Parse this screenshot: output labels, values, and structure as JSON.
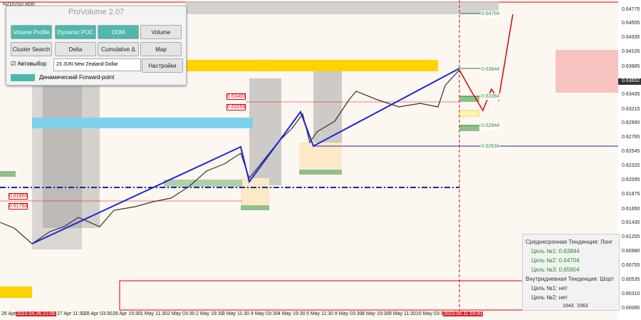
{
  "window": {
    "symbol": "NZDUSD,M30"
  },
  "panel": {
    "title": "ProVolume 2.07",
    "buttons": [
      "Volume Profile",
      "Dynamic POC",
      "DOM",
      "Volume",
      "Cluster Search",
      "Delta",
      "Cumulative Δ",
      "Map"
    ],
    "auto_select": "Автовыбор",
    "contract": "23 JUN New Zealand Dollar",
    "settings": "Настройки",
    "forward_point": "Динамический Forward-point"
  },
  "price_axis": {
    "labels": [
      "0.64775",
      "0.64555",
      "0.64335",
      "0.64105",
      "0.63885",
      "0.63435",
      "0.63215",
      "0.62990",
      "0.62765",
      "0.62545",
      "0.62320",
      "0.62095",
      "0.61875",
      "0.61650",
      "0.61430",
      "0.61205",
      "0.60980",
      "0.60755",
      "0.60535",
      "0.60310",
      "0.60085"
    ],
    "current": "0.63652"
  },
  "time_axis": {
    "labels": [
      "26 Apr 2023",
      "2023.04.26 21:00",
      "27 Apr 11:30",
      "28 Apr 03:30",
      "28 Apr 19:30",
      "1 May 11:30",
      "2 May 03:30",
      "2 May 19:30",
      "3 May 11:30",
      "4 May 03:30",
      "4 May 19:30",
      "5 May 11:30",
      "8 May 03:30",
      "8 May 19:30",
      "9 May 11:30",
      "10 May 03:30",
      "2023.05.11 04:00"
    ]
  },
  "levels": [
    "0.64704",
    "0.63844",
    "0.63394",
    "0.62944",
    "0.62634",
    "0.63400",
    "0.63250",
    "0.61850",
    "0.61760"
  ],
  "trend_box": {
    "lines": [
      "Среднесрочная Тенденция: Лонг",
      "Цель №1: 0.63844",
      "Цель №2: 0.64704",
      "Цель №3: 0.65604",
      "Внутридневная Тенденция: Шорт",
      "Цель №1: нет",
      "Цель №2: нет"
    ]
  },
  "volume": [
    "1643",
    "1563"
  ]
}
